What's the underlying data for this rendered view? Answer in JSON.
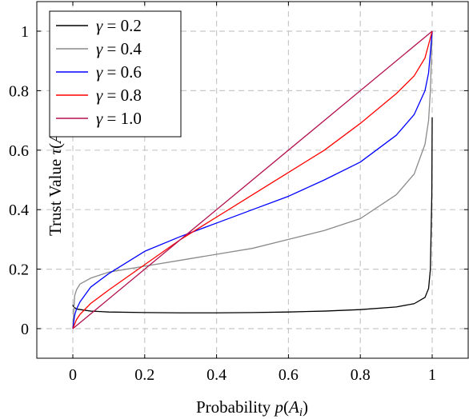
{
  "chart_data": {
    "type": "line",
    "xlabel": "Probability p(A_i)",
    "ylabel": "Trust Value τ(A_i)",
    "xlim": [
      -0.1,
      1.1
    ],
    "ylim": [
      -0.1,
      1.1
    ],
    "xticks": [
      0,
      0.2,
      0.4,
      0.6,
      0.8,
      1
    ],
    "xtick_labels": [
      "0",
      "0.2",
      "0.4",
      "0.6",
      "0.8",
      "1"
    ],
    "yticks": [
      0,
      0.2,
      0.4,
      0.6,
      0.8,
      1
    ],
    "ytick_labels": [
      "0",
      "0.2",
      "0.4",
      "0.6",
      "0.8",
      "1"
    ],
    "grid": true,
    "legend_position": "top-left",
    "series": [
      {
        "name": "γ = 0.2",
        "color": "#000000",
        "x": [
          0,
          0.001,
          0.01,
          0.05,
          0.1,
          0.2,
          0.3,
          0.4,
          0.5,
          0.6,
          0.7,
          0.8,
          0.9,
          0.95,
          0.98,
          0.99,
          0.995,
          0.999,
          1.0
        ],
        "y": [
          0.08,
          0.075,
          0.066,
          0.059,
          0.056,
          0.054,
          0.053,
          0.053,
          0.054,
          0.056,
          0.059,
          0.064,
          0.073,
          0.084,
          0.105,
          0.135,
          0.2,
          0.45,
          0.71
        ]
      },
      {
        "name": "γ = 0.4",
        "color": "#8a8a8a",
        "x": [
          0,
          0.005,
          0.01,
          0.02,
          0.05,
          0.1,
          0.2,
          0.3,
          0.4,
          0.5,
          0.6,
          0.7,
          0.8,
          0.9,
          0.95,
          0.98,
          0.99,
          0.995,
          1.0
        ],
        "y": [
          0.0,
          0.11,
          0.13,
          0.15,
          0.17,
          0.19,
          0.21,
          0.23,
          0.25,
          0.27,
          0.3,
          0.33,
          0.37,
          0.45,
          0.52,
          0.62,
          0.7,
          0.8,
          1.0
        ]
      },
      {
        "name": "γ = 0.6",
        "color": "#0000ff",
        "x": [
          0,
          0.005,
          0.01,
          0.02,
          0.05,
          0.1,
          0.2,
          0.3,
          0.4,
          0.5,
          0.6,
          0.7,
          0.8,
          0.9,
          0.95,
          0.98,
          0.99,
          1.0
        ],
        "y": [
          0.0,
          0.045,
          0.065,
          0.09,
          0.14,
          0.185,
          0.26,
          0.31,
          0.355,
          0.4,
          0.445,
          0.5,
          0.56,
          0.65,
          0.72,
          0.8,
          0.86,
          1.0
        ]
      },
      {
        "name": "γ = 0.8",
        "color": "#ff0000",
        "x": [
          0,
          0.01,
          0.02,
          0.05,
          0.1,
          0.2,
          0.3,
          0.4,
          0.5,
          0.6,
          0.7,
          0.8,
          0.9,
          0.95,
          0.98,
          1.0
        ],
        "y": [
          0.0,
          0.03,
          0.048,
          0.085,
          0.13,
          0.215,
          0.3,
          0.375,
          0.45,
          0.525,
          0.6,
          0.69,
          0.79,
          0.85,
          0.91,
          1.0
        ]
      },
      {
        "name": "γ = 1.0",
        "color": "#b3114f",
        "x": [
          0,
          1
        ],
        "y": [
          0,
          1
        ]
      }
    ]
  }
}
